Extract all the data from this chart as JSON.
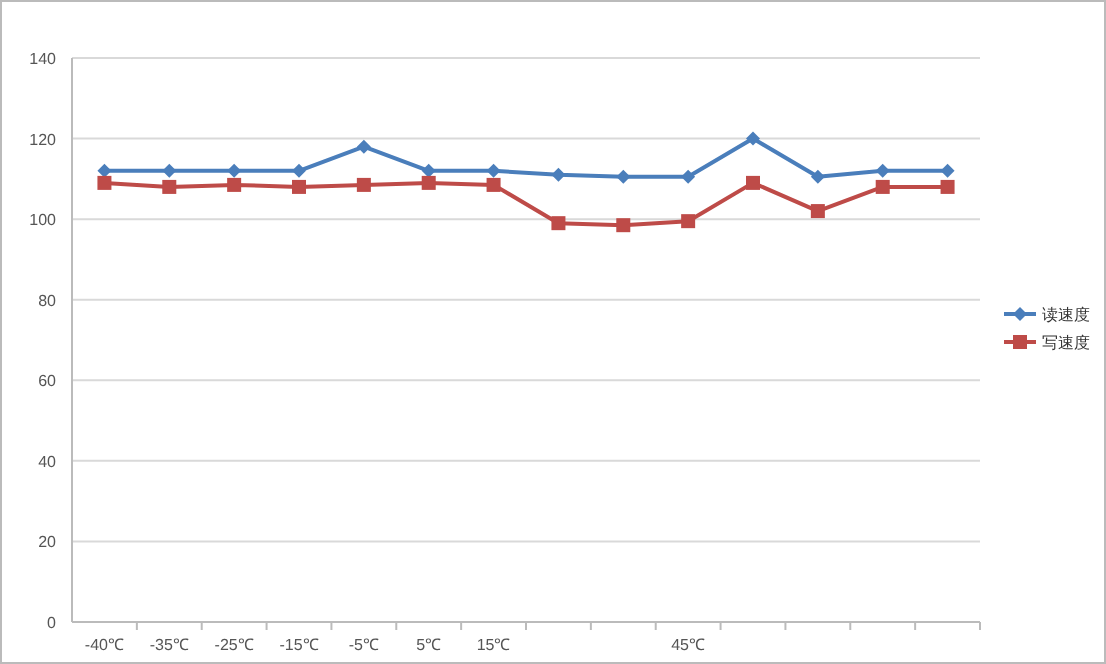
{
  "chart_data": {
    "type": "line",
    "categories": [
      "-40℃",
      "-35℃",
      "-25℃",
      "-15℃",
      "-5℃",
      "5℃",
      "15℃",
      null,
      null,
      "45℃",
      null,
      null,
      null,
      null
    ],
    "series": [
      {
        "name": "读速度",
        "color": "#4a7ebb",
        "marker": "diamond",
        "values": [
          112,
          112,
          112,
          112,
          118,
          112,
          112,
          111,
          110.5,
          110.5,
          120,
          110.5,
          112,
          112
        ]
      },
      {
        "name": "写速度",
        "color": "#be4b48",
        "marker": "square",
        "values": [
          109,
          108,
          108.5,
          108,
          108.5,
          109,
          108.5,
          99,
          98.5,
          99.5,
          109,
          102,
          108,
          108
        ]
      }
    ],
    "ylim": [
      0,
      140
    ],
    "yticks": [
      0,
      20,
      40,
      60,
      80,
      100,
      120,
      140
    ],
    "grid": "y",
    "legend": "right"
  }
}
